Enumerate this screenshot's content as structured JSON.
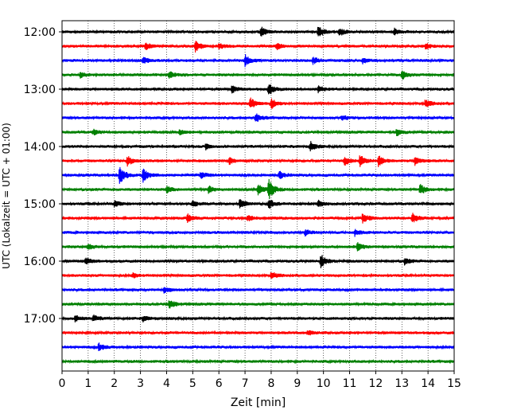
{
  "chart_data": {
    "type": "line",
    "subtype": "helicorder",
    "xlabel": "Zeit  [min]",
    "ylabel": "UTC (Lokalzeit = UTC + 01:00)",
    "xlim": [
      0,
      15
    ],
    "x_ticks": [
      "0",
      "1",
      "2",
      "3",
      "4",
      "5",
      "6",
      "7",
      "8",
      "9",
      "10",
      "11",
      "12",
      "13",
      "14",
      "15"
    ],
    "y_ticks": [
      "12:00",
      "13:00",
      "14:00",
      "15:00",
      "16:00",
      "17:00"
    ],
    "grid": "vertical dotted at each minute",
    "trace_colors": [
      "#000000",
      "#ff0000",
      "#0000ff",
      "#008000"
    ],
    "trace_start_times": [
      "12:00",
      "12:15",
      "12:30",
      "12:45",
      "13:00",
      "13:15",
      "13:30",
      "13:45",
      "14:00",
      "14:15",
      "14:30",
      "14:45",
      "15:00",
      "15:15",
      "15:30",
      "15:45",
      "16:00",
      "16:15",
      "16:30",
      "16:45",
      "17:00",
      "17:15",
      "17:30",
      "17:45"
    ],
    "events": [
      [
        [
          7.6,
          0.8
        ],
        [
          9.8,
          0.9
        ],
        [
          10.6,
          0.6
        ],
        [
          12.7,
          0.5
        ]
      ],
      [
        [
          3.2,
          0.5
        ],
        [
          5.1,
          0.8
        ],
        [
          6.0,
          0.4
        ],
        [
          8.2,
          0.5
        ],
        [
          13.9,
          0.4
        ]
      ],
      [
        [
          3.1,
          0.5
        ],
        [
          7.0,
          0.9
        ],
        [
          9.6,
          0.5
        ],
        [
          11.5,
          0.4
        ]
      ],
      [
        [
          0.7,
          0.4
        ],
        [
          4.1,
          0.6
        ],
        [
          13.0,
          0.7
        ]
      ],
      [
        [
          6.5,
          0.5
        ],
        [
          7.9,
          0.9
        ],
        [
          9.8,
          0.5
        ]
      ],
      [
        [
          7.2,
          0.9
        ],
        [
          8.0,
          0.8
        ],
        [
          13.9,
          0.6
        ]
      ],
      [
        [
          7.4,
          0.7
        ],
        [
          10.7,
          0.4
        ]
      ],
      [
        [
          1.2,
          0.4
        ],
        [
          4.5,
          0.4
        ],
        [
          12.8,
          0.5
        ]
      ],
      [
        [
          5.5,
          0.4
        ],
        [
          9.5,
          0.7
        ]
      ],
      [
        [
          2.5,
          0.8
        ],
        [
          6.4,
          0.5
        ],
        [
          10.8,
          0.7
        ],
        [
          11.4,
          1.0
        ],
        [
          12.1,
          0.8
        ],
        [
          13.5,
          0.6
        ]
      ],
      [
        [
          2.2,
          1.6
        ],
        [
          3.1,
          1.0
        ],
        [
          5.3,
          0.5
        ],
        [
          8.3,
          0.6
        ]
      ],
      [
        [
          4.0,
          0.5
        ],
        [
          5.6,
          0.6
        ],
        [
          7.5,
          0.8
        ],
        [
          7.9,
          1.6
        ],
        [
          13.7,
          0.8
        ]
      ],
      [
        [
          2.0,
          0.5
        ],
        [
          5.0,
          0.4
        ],
        [
          6.8,
          0.7
        ],
        [
          7.9,
          0.8
        ],
        [
          9.8,
          0.5
        ]
      ],
      [
        [
          4.8,
          0.6
        ],
        [
          7.1,
          0.4
        ],
        [
          11.5,
          0.8
        ],
        [
          13.4,
          0.8
        ]
      ],
      [
        [
          9.3,
          0.4
        ],
        [
          11.2,
          0.5
        ]
      ],
      [
        [
          1.0,
          0.4
        ],
        [
          11.3,
          0.6
        ]
      ],
      [
        [
          0.9,
          0.5
        ],
        [
          9.9,
          1.0
        ],
        [
          13.1,
          0.5
        ]
      ],
      [
        [
          2.7,
          0.4
        ],
        [
          8.0,
          0.6
        ]
      ],
      [
        [
          3.9,
          0.4
        ]
      ],
      [
        [
          4.1,
          0.7
        ]
      ],
      [
        [
          0.5,
          0.4
        ],
        [
          1.2,
          0.5
        ],
        [
          3.1,
          0.4
        ]
      ],
      [
        [
          9.4,
          0.3
        ]
      ],
      [
        [
          1.4,
          0.6
        ]
      ],
      []
    ]
  }
}
